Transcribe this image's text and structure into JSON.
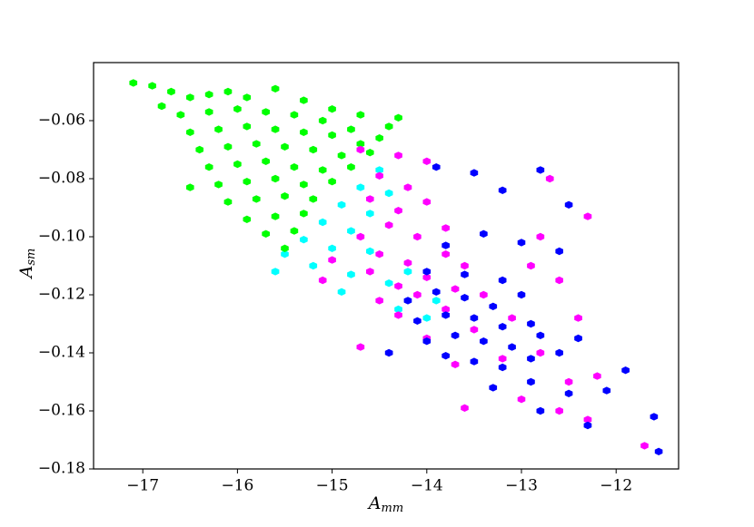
{
  "chart_data": {
    "type": "scatter",
    "xlabel": "A",
    "xlabel_sub": "mm",
    "ylabel": "A",
    "ylabel_sub": "sm",
    "xlim": [
      -17.52,
      -11.34
    ],
    "ylim": [
      -0.18,
      -0.04
    ],
    "xticks": [
      {
        "value": -17,
        "label": "−17"
      },
      {
        "value": -16,
        "label": "−16"
      },
      {
        "value": -15,
        "label": "−15"
      },
      {
        "value": -14,
        "label": "−14"
      },
      {
        "value": -13,
        "label": "−13"
      },
      {
        "value": -12,
        "label": "−12"
      }
    ],
    "yticks": [
      {
        "value": -0.06,
        "label": "−0.06"
      },
      {
        "value": -0.08,
        "label": "−0.08"
      },
      {
        "value": -0.1,
        "label": "−0.10"
      },
      {
        "value": -0.12,
        "label": "−0.12"
      },
      {
        "value": -0.14,
        "label": "−0.14"
      },
      {
        "value": -0.16,
        "label": "−0.16"
      },
      {
        "value": -0.18,
        "label": "−0.18"
      }
    ],
    "grid": false,
    "series": [
      {
        "color": "#00ffff",
        "x": [
          -14.5,
          -14.7,
          -14.4,
          -14.9,
          -14.6,
          -15.1,
          -14.8,
          -15.3,
          -15.0,
          -15.5,
          -15.6,
          -15.2,
          -14.8,
          -14.4,
          -14.9,
          -14.2,
          -13.9,
          -14.3,
          -14.0,
          -14.6
        ],
        "y": [
          -0.077,
          -0.083,
          -0.085,
          -0.089,
          -0.092,
          -0.095,
          -0.098,
          -0.101,
          -0.104,
          -0.106,
          -0.112,
          -0.11,
          -0.113,
          -0.116,
          -0.119,
          -0.112,
          -0.122,
          -0.125,
          -0.128,
          -0.105
        ]
      },
      {
        "color": "#00ff00",
        "x": [
          -17.1,
          -16.9,
          -16.7,
          -16.8,
          -16.5,
          -16.3,
          -16.1,
          -15.9,
          -15.6,
          -15.3,
          -15.0,
          -14.7,
          -14.4,
          -16.6,
          -16.3,
          -16.0,
          -15.7,
          -15.4,
          -15.1,
          -14.8,
          -14.5,
          -16.5,
          -16.2,
          -15.9,
          -15.6,
          -15.3,
          -15.0,
          -14.7,
          -16.4,
          -16.1,
          -15.8,
          -15.5,
          -15.2,
          -14.9,
          -14.6,
          -16.3,
          -16.0,
          -15.7,
          -15.4,
          -15.1,
          -14.8,
          -16.2,
          -15.9,
          -15.6,
          -15.3,
          -15.0,
          -16.1,
          -15.8,
          -15.5,
          -15.2,
          -15.9,
          -15.6,
          -15.3,
          -15.7,
          -15.4,
          -15.5,
          -16.5,
          -14.3
        ],
        "y": [
          -0.047,
          -0.048,
          -0.05,
          -0.055,
          -0.052,
          -0.051,
          -0.05,
          -0.052,
          -0.049,
          -0.053,
          -0.056,
          -0.058,
          -0.062,
          -0.058,
          -0.057,
          -0.056,
          -0.057,
          -0.058,
          -0.06,
          -0.063,
          -0.066,
          -0.064,
          -0.063,
          -0.062,
          -0.063,
          -0.064,
          -0.065,
          -0.068,
          -0.07,
          -0.069,
          -0.068,
          -0.069,
          -0.07,
          -0.072,
          -0.071,
          -0.076,
          -0.075,
          -0.074,
          -0.076,
          -0.077,
          -0.076,
          -0.082,
          -0.081,
          -0.08,
          -0.082,
          -0.081,
          -0.088,
          -0.087,
          -0.086,
          -0.087,
          -0.094,
          -0.093,
          -0.092,
          -0.099,
          -0.098,
          -0.104,
          -0.083,
          -0.059
        ]
      },
      {
        "color": "#ff00ff",
        "x": [
          -14.7,
          -14.3,
          -14.0,
          -14.5,
          -14.2,
          -14.6,
          -14.3,
          -14.0,
          -14.4,
          -14.7,
          -14.1,
          -13.8,
          -15.0,
          -14.5,
          -14.2,
          -13.8,
          -15.1,
          -14.6,
          -14.3,
          -14.0,
          -13.6,
          -14.5,
          -14.1,
          -13.7,
          -14.3,
          -13.8,
          -13.4,
          -14.7,
          -14.0,
          -13.5,
          -13.1,
          -12.9,
          -12.6,
          -12.7,
          -12.4,
          -13.7,
          -13.2,
          -12.8,
          -12.5,
          -12.2,
          -13.0,
          -12.6,
          -12.3,
          -11.7,
          -13.6,
          -12.3,
          -12.8
        ],
        "y": [
          -0.07,
          -0.072,
          -0.074,
          -0.079,
          -0.083,
          -0.087,
          -0.091,
          -0.088,
          -0.096,
          -0.1,
          -0.1,
          -0.097,
          -0.108,
          -0.106,
          -0.109,
          -0.106,
          -0.115,
          -0.112,
          -0.117,
          -0.114,
          -0.11,
          -0.122,
          -0.12,
          -0.118,
          -0.127,
          -0.125,
          -0.12,
          -0.138,
          -0.135,
          -0.132,
          -0.128,
          -0.11,
          -0.115,
          -0.08,
          -0.128,
          -0.144,
          -0.142,
          -0.14,
          -0.15,
          -0.148,
          -0.156,
          -0.16,
          -0.163,
          -0.172,
          -0.159,
          -0.093,
          -0.1
        ]
      },
      {
        "color": "#0000ff",
        "x": [
          -13.9,
          -13.5,
          -13.2,
          -12.8,
          -12.5,
          -13.8,
          -13.4,
          -13.0,
          -14.0,
          -13.6,
          -13.2,
          -14.2,
          -13.9,
          -13.6,
          -13.3,
          -13.0,
          -14.1,
          -13.8,
          -13.5,
          -13.2,
          -12.9,
          -14.0,
          -13.7,
          -13.4,
          -13.1,
          -12.8,
          -13.8,
          -13.5,
          -13.2,
          -12.9,
          -12.6,
          -12.4,
          -13.3,
          -12.9,
          -12.5,
          -12.1,
          -11.9,
          -12.8,
          -12.3,
          -11.6,
          -11.55,
          -12.6,
          -14.4
        ],
        "y": [
          -0.076,
          -0.078,
          -0.084,
          -0.077,
          -0.089,
          -0.103,
          -0.099,
          -0.102,
          -0.112,
          -0.113,
          -0.115,
          -0.122,
          -0.119,
          -0.121,
          -0.124,
          -0.12,
          -0.129,
          -0.127,
          -0.128,
          -0.131,
          -0.13,
          -0.136,
          -0.134,
          -0.136,
          -0.138,
          -0.134,
          -0.141,
          -0.143,
          -0.145,
          -0.142,
          -0.14,
          -0.135,
          -0.152,
          -0.15,
          -0.154,
          -0.153,
          -0.146,
          -0.16,
          -0.165,
          -0.162,
          -0.174,
          -0.105,
          -0.14
        ]
      }
    ]
  }
}
